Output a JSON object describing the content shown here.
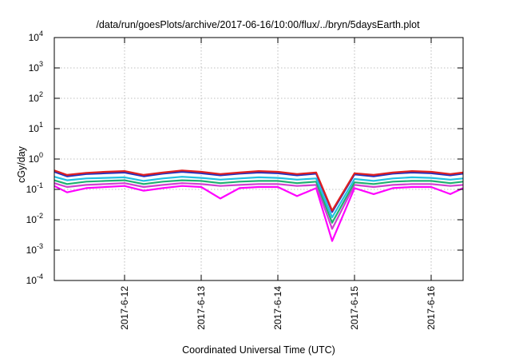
{
  "chart_data": {
    "type": "line",
    "title": "/data/run/goesPlots/archive/2017-06-16/10:00/flux/../bryn/5daysEarth.plot",
    "xlabel": "Coordinated Universal Time (UTC)",
    "ylabel": "cGy/day",
    "yscale": "log",
    "ylim": [
      0.0001,
      10000
    ],
    "y_ticks": [
      {
        "base": "10",
        "exp": "4"
      },
      {
        "base": "10",
        "exp": "3"
      },
      {
        "base": "10",
        "exp": "2"
      },
      {
        "base": "10",
        "exp": "1"
      },
      {
        "base": "10",
        "exp": "0"
      },
      {
        "base": "10",
        "exp": "-1"
      },
      {
        "base": "10",
        "exp": "-2"
      },
      {
        "base": "10",
        "exp": "-3"
      },
      {
        "base": "10",
        "exp": "-4"
      }
    ],
    "xlim": [
      "2017-06-11T02:00",
      "2017-06-16T10:00"
    ],
    "x_ticks": [
      "2017-6-12",
      "2017-6-13",
      "2017-6-14",
      "2017-6-15",
      "2017-6-16"
    ],
    "grid": true,
    "legend": "none",
    "series": [
      {
        "color": "#e02020",
        "x": [
          "2017-06-11T02:00",
          "2017-06-11T06:00",
          "2017-06-11T12:00",
          "2017-06-11T18:00",
          "2017-06-12T00:00",
          "2017-06-12T06:00",
          "2017-06-12T12:00",
          "2017-06-12T18:00",
          "2017-06-13T00:00",
          "2017-06-13T06:00",
          "2017-06-13T12:00",
          "2017-06-13T18:00",
          "2017-06-14T00:00",
          "2017-06-14T06:00",
          "2017-06-14T12:00",
          "2017-06-14T17:00",
          "2017-06-15T00:00",
          "2017-06-15T06:00",
          "2017-06-15T12:00",
          "2017-06-15T18:00",
          "2017-06-16T00:00",
          "2017-06-16T06:00",
          "2017-06-16T10:00"
        ],
        "y": [
          0.42,
          0.3,
          0.35,
          0.38,
          0.4,
          0.3,
          0.36,
          0.42,
          0.38,
          0.32,
          0.36,
          0.4,
          0.38,
          0.32,
          0.36,
          0.02,
          0.34,
          0.3,
          0.36,
          0.4,
          0.38,
          0.32,
          0.36
        ]
      },
      {
        "color": "#2030c0",
        "x": [
          "2017-06-11T02:00",
          "2017-06-11T06:00",
          "2017-06-11T12:00",
          "2017-06-11T18:00",
          "2017-06-12T00:00",
          "2017-06-12T06:00",
          "2017-06-12T12:00",
          "2017-06-12T18:00",
          "2017-06-13T00:00",
          "2017-06-13T06:00",
          "2017-06-13T12:00",
          "2017-06-13T18:00",
          "2017-06-14T00:00",
          "2017-06-14T06:00",
          "2017-06-14T12:00",
          "2017-06-14T17:00",
          "2017-06-15T00:00",
          "2017-06-15T06:00",
          "2017-06-15T12:00",
          "2017-06-15T18:00",
          "2017-06-16T00:00",
          "2017-06-16T06:00",
          "2017-06-16T10:00"
        ],
        "y": [
          0.38,
          0.27,
          0.32,
          0.34,
          0.36,
          0.27,
          0.33,
          0.38,
          0.34,
          0.29,
          0.33,
          0.36,
          0.34,
          0.29,
          0.33,
          0.018,
          0.31,
          0.27,
          0.33,
          0.36,
          0.34,
          0.29,
          0.33
        ]
      },
      {
        "color": "#20c0e0",
        "x": [
          "2017-06-11T02:00",
          "2017-06-11T06:00",
          "2017-06-11T12:00",
          "2017-06-11T18:00",
          "2017-06-12T00:00",
          "2017-06-12T06:00",
          "2017-06-12T12:00",
          "2017-06-12T18:00",
          "2017-06-13T00:00",
          "2017-06-13T06:00",
          "2017-06-13T12:00",
          "2017-06-13T18:00",
          "2017-06-14T00:00",
          "2017-06-14T06:00",
          "2017-06-14T12:00",
          "2017-06-14T17:00",
          "2017-06-15T00:00",
          "2017-06-15T06:00",
          "2017-06-15T12:00",
          "2017-06-15T18:00",
          "2017-06-16T00:00",
          "2017-06-16T06:00",
          "2017-06-16T10:00"
        ],
        "y": [
          0.26,
          0.2,
          0.23,
          0.24,
          0.25,
          0.19,
          0.23,
          0.26,
          0.24,
          0.21,
          0.23,
          0.25,
          0.24,
          0.21,
          0.23,
          0.012,
          0.22,
          0.19,
          0.23,
          0.25,
          0.24,
          0.21,
          0.23
        ]
      },
      {
        "color": "#20b070",
        "x": [
          "2017-06-11T02:00",
          "2017-06-11T06:00",
          "2017-06-11T12:00",
          "2017-06-11T18:00",
          "2017-06-12T00:00",
          "2017-06-12T06:00",
          "2017-06-12T12:00",
          "2017-06-12T18:00",
          "2017-06-13T00:00",
          "2017-06-13T06:00",
          "2017-06-13T12:00",
          "2017-06-13T18:00",
          "2017-06-14T00:00",
          "2017-06-14T06:00",
          "2017-06-14T12:00",
          "2017-06-14T17:00",
          "2017-06-15T00:00",
          "2017-06-15T06:00",
          "2017-06-15T12:00",
          "2017-06-15T18:00",
          "2017-06-16T00:00",
          "2017-06-16T06:00",
          "2017-06-16T10:00"
        ],
        "y": [
          0.2,
          0.15,
          0.18,
          0.19,
          0.2,
          0.15,
          0.18,
          0.2,
          0.19,
          0.16,
          0.18,
          0.19,
          0.19,
          0.16,
          0.18,
          0.008,
          0.17,
          0.15,
          0.18,
          0.19,
          0.19,
          0.16,
          0.18
        ]
      },
      {
        "color": "#d040d0",
        "x": [
          "2017-06-11T02:00",
          "2017-06-11T06:00",
          "2017-06-11T12:00",
          "2017-06-11T18:00",
          "2017-06-12T00:00",
          "2017-06-12T06:00",
          "2017-06-12T12:00",
          "2017-06-12T18:00",
          "2017-06-13T00:00",
          "2017-06-13T06:00",
          "2017-06-13T12:00",
          "2017-06-13T18:00",
          "2017-06-14T00:00",
          "2017-06-14T06:00",
          "2017-06-14T12:00",
          "2017-06-14T17:00",
          "2017-06-15T00:00",
          "2017-06-15T06:00",
          "2017-06-15T12:00",
          "2017-06-15T18:00",
          "2017-06-16T00:00",
          "2017-06-16T06:00",
          "2017-06-16T10:00"
        ],
        "y": [
          0.16,
          0.12,
          0.14,
          0.15,
          0.16,
          0.12,
          0.14,
          0.16,
          0.15,
          0.13,
          0.14,
          0.15,
          0.15,
          0.13,
          0.14,
          0.005,
          0.14,
          0.12,
          0.14,
          0.15,
          0.15,
          0.13,
          0.14
        ]
      },
      {
        "color": "#ff00ff",
        "x": [
          "2017-06-11T02:00",
          "2017-06-11T06:00",
          "2017-06-11T12:00",
          "2017-06-11T18:00",
          "2017-06-12T00:00",
          "2017-06-12T06:00",
          "2017-06-12T12:00",
          "2017-06-12T18:00",
          "2017-06-13T00:00",
          "2017-06-13T06:00",
          "2017-06-13T12:00",
          "2017-06-13T18:00",
          "2017-06-14T00:00",
          "2017-06-14T06:00",
          "2017-06-14T12:00",
          "2017-06-14T17:00",
          "2017-06-15T00:00",
          "2017-06-15T06:00",
          "2017-06-15T12:00",
          "2017-06-15T18:00",
          "2017-06-16T00:00",
          "2017-06-16T06:00",
          "2017-06-16T10:00"
        ],
        "y": [
          0.13,
          0.08,
          0.11,
          0.12,
          0.13,
          0.09,
          0.11,
          0.13,
          0.12,
          0.05,
          0.11,
          0.12,
          0.12,
          0.06,
          0.11,
          0.002,
          0.11,
          0.07,
          0.11,
          0.12,
          0.12,
          0.07,
          0.11
        ]
      }
    ]
  }
}
